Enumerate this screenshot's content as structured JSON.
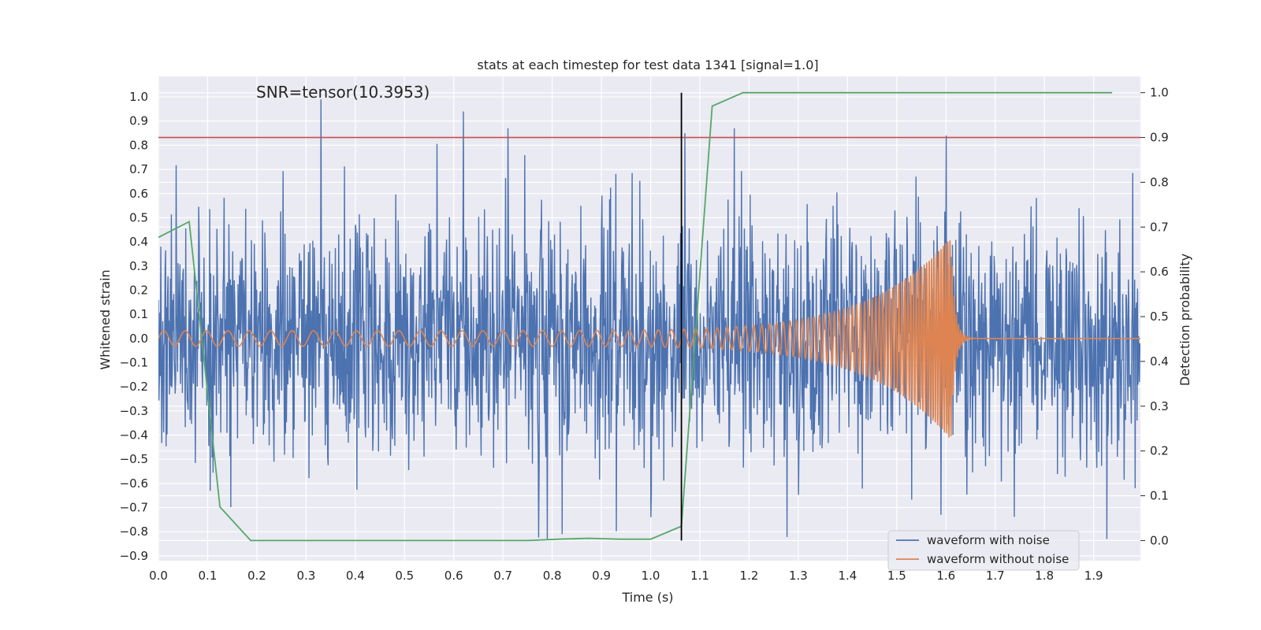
{
  "chart_data": {
    "type": "line",
    "title": "stats at each timestep for test data 1341 [signal=1.0]",
    "xlabel": "Time (s)",
    "ylabel": "Whitened strain",
    "y2label": "Detection probability",
    "annotation": "SNR=tensor(10.3953)",
    "xlim": [
      0.0,
      1.995
    ],
    "ylim": [
      -0.92,
      1.085
    ],
    "y2lim": [
      -0.045,
      1.0364
    ],
    "x_ticks": [
      0.0,
      0.1,
      0.2,
      0.3,
      0.4,
      0.5,
      0.6,
      0.7,
      0.8,
      0.9,
      1.0,
      1.1,
      1.2,
      1.3,
      1.4,
      1.5,
      1.6,
      1.7,
      1.8,
      1.9
    ],
    "x_tick_labels": [
      "0.0",
      "0.1",
      "0.2",
      "0.3",
      "0.4",
      "0.5",
      "0.6",
      "0.7",
      "0.8",
      "0.9",
      "1.0",
      "1.1",
      "1.2",
      "1.3",
      "1.4",
      "1.5",
      "1.6",
      "1.7",
      "1.8",
      "1.9"
    ],
    "y_ticks": [
      1.0,
      0.9,
      0.8,
      0.7,
      0.6,
      0.5,
      0.4,
      0.3,
      0.2,
      0.1,
      0.0,
      -0.1,
      -0.2,
      -0.3,
      -0.4,
      -0.5,
      -0.6,
      -0.7,
      -0.8,
      -0.9
    ],
    "y_tick_labels": [
      "1.0",
      "0.9",
      "0.8",
      "0.7",
      "0.6",
      "0.5",
      "0.4",
      "0.3",
      "0.2",
      "0.1",
      "0.0",
      "−0.1",
      "−0.2",
      "−0.3",
      "−0.4",
      "−0.5",
      "−0.6",
      "−0.7",
      "−0.8",
      "−0.9"
    ],
    "y2_ticks": [
      1.0,
      0.9,
      0.8,
      0.7,
      0.6,
      0.5,
      0.4,
      0.3,
      0.2,
      0.1,
      0.0
    ],
    "y2_tick_labels": [
      "1.0",
      "0.9",
      "0.8",
      "0.7",
      "0.6",
      "0.5",
      "0.4",
      "0.3",
      "0.2",
      "0.1",
      "0.0"
    ],
    "grid": true,
    "legend_position": "lower-right",
    "series": [
      {
        "name": "waveform with noise",
        "color": "#4c72b0",
        "description_stats": {
          "approx_min": -0.83,
          "approx_max": 0.99,
          "approx_std": 0.25
        },
        "key_peaks": [
          [
            0.33,
            0.99
          ],
          [
            0.62,
            0.94
          ],
          [
            0.71,
            0.87
          ],
          [
            0.79,
            -0.83
          ],
          [
            0.82,
            -0.81
          ],
          [
            1.0,
            -0.74
          ],
          [
            1.07,
            0.85
          ],
          [
            1.17,
            0.87
          ],
          [
            1.6,
            0.84
          ],
          [
            1.59,
            -0.73
          ]
        ]
      },
      {
        "name": "waveform without noise",
        "color": "#dd8452",
        "chirp": {
          "f_start_hz": 23,
          "f_end_hz": 230,
          "amp_start": 0.032,
          "amp_end": 0.42,
          "t_merger": 1.61,
          "ringdown_tau": 0.008
        }
      },
      {
        "name": "",
        "axis": "right",
        "color": "#55a868",
        "x": [
          0.0,
          0.0625,
          0.125,
          0.1875,
          0.25,
          0.3125,
          0.375,
          0.4375,
          0.5,
          0.5625,
          0.625,
          0.6875,
          0.75,
          0.8125,
          0.875,
          0.9375,
          1.0,
          1.0625,
          1.125,
          1.1875,
          1.25,
          1.3125,
          1.375,
          1.4375,
          1.5,
          1.5625,
          1.625,
          1.6875,
          1.75,
          1.8125,
          1.875,
          1.9375
        ],
        "values": [
          0.677,
          0.712,
          0.075,
          0.0,
          0.0,
          0.0,
          0.0,
          0.0,
          0.0,
          0.0,
          0.0,
          0.0,
          0.0,
          0.003,
          0.005,
          0.003,
          0.003,
          0.032,
          0.97,
          1.0,
          1.0,
          1.0,
          1.0,
          1.0,
          1.0,
          1.0,
          1.0,
          1.0,
          1.0,
          1.0,
          1.0,
          1.0
        ]
      }
    ],
    "threshold_line": {
      "axis": "right",
      "value": 0.9,
      "color": "#c44e52"
    },
    "vertical_marker": {
      "x": 1.0625,
      "color": "#000000"
    }
  }
}
